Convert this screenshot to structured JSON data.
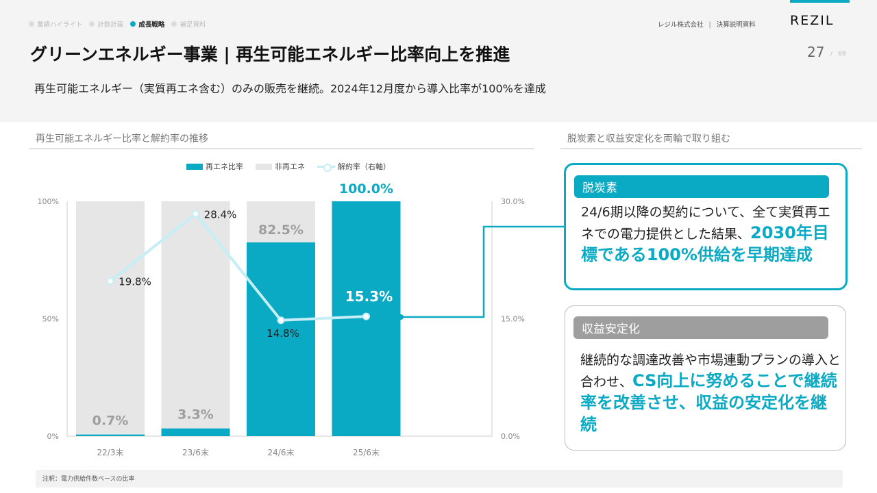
{
  "nav": {
    "items": [
      {
        "label": "業績ハイライト",
        "active": false
      },
      {
        "label": "計数計画",
        "active": false
      },
      {
        "label": "成長戦略",
        "active": true
      },
      {
        "label": "補足資料",
        "active": false
      }
    ]
  },
  "header": {
    "company": "レジル株式会社",
    "separator": "|",
    "doc_type": "決算説明資料",
    "logo": "REZIL",
    "page_number": "27",
    "page_separator": "/",
    "page_total": "69"
  },
  "title": "グリーンエネルギー事業 | 再生可能エネルギー比率向上を推進",
  "lead": "再生可能エネルギー（実質再エネ含む）のみの販売を継続。2024年12月度から導入比率が100%を達成",
  "left_panel": {
    "heading": "再生可能エネルギー比率と解約率の推移"
  },
  "right_panel": {
    "heading": "脱炭素と収益安定化を両輪で取り組む"
  },
  "colors": {
    "accent": "#0aaac4",
    "non_renewable": "#e6e6e6",
    "churn_line": "#c6eef6",
    "muted_label": "#9e9e9e"
  },
  "chart_data": {
    "type": "bar",
    "categories": [
      "22/3末",
      "23/6末",
      "24/6末",
      "25/6末"
    ],
    "series": [
      {
        "name": "再エネ比率",
        "type": "bar",
        "stack": "share",
        "values": [
          0.7,
          3.3,
          82.5,
          100.0
        ],
        "labels": [
          "0.7%",
          "3.3%",
          "82.5%",
          "100.0%"
        ]
      },
      {
        "name": "非再エネ",
        "type": "bar",
        "stack": "share",
        "values": [
          99.3,
          96.7,
          17.5,
          0.0
        ]
      },
      {
        "name": "解約率（右軸）",
        "type": "line",
        "axis": "right",
        "values": [
          19.8,
          28.4,
          14.8,
          15.3
        ],
        "labels": [
          "19.8%",
          "28.4%",
          "14.8%",
          "15.3%"
        ]
      }
    ],
    "y_left": {
      "ylim": [
        0,
        100
      ],
      "ticks": [
        "0%",
        "50%",
        "100%"
      ]
    },
    "y_right": {
      "ylim": [
        0,
        30
      ],
      "ticks": [
        "0.0%",
        "15.0%",
        "30.0%"
      ]
    },
    "legend": {
      "position": "top"
    },
    "grid": false
  },
  "cards": [
    {
      "label": "脱炭素",
      "body": "24/6期以降の契約について、全て実質再エネでの電力提供とした結果、",
      "emphasis": "2030年目標である100%供給を早期達成"
    },
    {
      "label": "収益安定化",
      "body": "継続的な調達改善や市場連動プランの導入と合わせ、",
      "emphasis": "CS向上に努めることで継続率を改善させ、収益の安定化を継続"
    }
  ],
  "footnote": "注釈：電力供給件数ベースの比率"
}
